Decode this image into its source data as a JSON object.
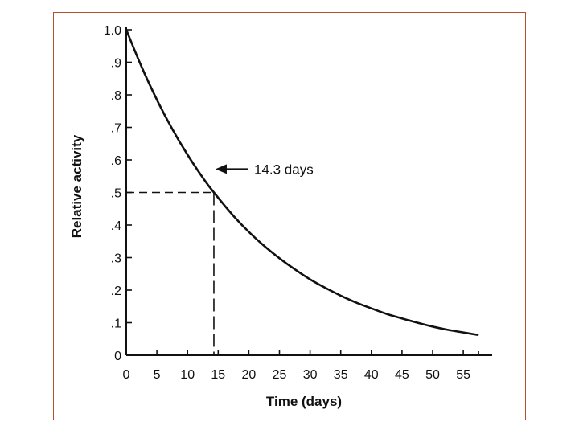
{
  "chart_data": {
    "type": "line",
    "title": "",
    "xlabel": "Time (days)",
    "ylabel": "Relative activity",
    "xlim": [
      0,
      60
    ],
    "ylim": [
      0,
      1.0
    ],
    "grid": false,
    "x_ticks": [
      {
        "value": 0,
        "label": "0"
      },
      {
        "value": 5,
        "label": "5"
      },
      {
        "value": 10,
        "label": "10"
      },
      {
        "value": 15,
        "label": "15"
      },
      {
        "value": 20,
        "label": "20"
      },
      {
        "value": 25,
        "label": "25"
      },
      {
        "value": 30,
        "label": "30"
      },
      {
        "value": 35,
        "label": "35"
      },
      {
        "value": 40,
        "label": "40"
      },
      {
        "value": 45,
        "label": "45"
      },
      {
        "value": 50,
        "label": "50"
      },
      {
        "value": 55,
        "label": "55"
      }
    ],
    "y_ticks": [
      {
        "value": 0,
        "label": "0"
      },
      {
        "value": 0.1,
        "label": ".1"
      },
      {
        "value": 0.2,
        "label": ".2"
      },
      {
        "value": 0.3,
        "label": ".3"
      },
      {
        "value": 0.4,
        "label": ".4"
      },
      {
        "value": 0.5,
        "label": ".5"
      },
      {
        "value": 0.6,
        "label": ".6"
      },
      {
        "value": 0.7,
        "label": ".7"
      },
      {
        "value": 0.8,
        "label": ".8"
      },
      {
        "value": 0.9,
        "label": ".9"
      },
      {
        "value": 1.0,
        "label": "1.0"
      }
    ],
    "series": [
      {
        "x": [
          0,
          2.5,
          5,
          7.5,
          10,
          12.5,
          14.3,
          17.5,
          20,
          22.5,
          25,
          27.5,
          30,
          32.5,
          35,
          37.5,
          40,
          42.5,
          45,
          47.5,
          50,
          52.5,
          55,
          57.5
        ],
        "y": [
          1.0,
          0.886,
          0.785,
          0.695,
          0.616,
          0.545,
          0.5,
          0.428,
          0.379,
          0.336,
          0.298,
          0.264,
          0.233,
          0.207,
          0.183,
          0.162,
          0.144,
          0.127,
          0.113,
          0.1,
          0.088,
          0.078,
          0.07,
          0.062
        ],
        "color": "#111111"
      }
    ],
    "annotation": {
      "text": "14.3 days",
      "x": 14.3,
      "y": 0.5
    }
  }
}
